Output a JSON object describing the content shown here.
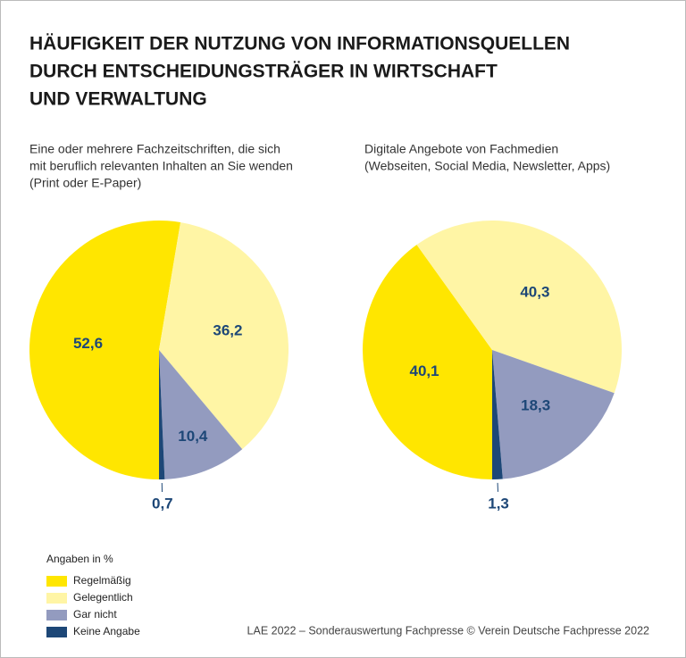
{
  "title": [
    "HÄUFIGKEIT DER NUTZUNG VON INFORMATIONSQUELLEN",
    "DURCH ENTSCHEIDUNGSTRÄGER IN WIRTSCHAFT",
    "UND VERWALTUNG"
  ],
  "legend": {
    "title": "Angaben in %",
    "categories": [
      "Regelmäßig",
      "Gelegentlich",
      "Gar nicht",
      "Keine Angabe"
    ],
    "colors": [
      "#ffe600",
      "#fff5a5",
      "#939bbf",
      "#1d4777"
    ]
  },
  "source": "LAE 2022 – Sonderauswertung Fachpresse © Verein Deutsche Fachpresse 2022",
  "chart_data": [
    {
      "type": "pie",
      "subtitle": [
        "Eine oder mehrere Fachzeitschriften, die sich",
        "mit beruflich relevanten Inhalten an Sie wenden",
        "(Print oder E-Paper)"
      ],
      "values": [
        52.6,
        36.2,
        10.4,
        0.7
      ],
      "value_labels": [
        "52,6",
        "36,2",
        "10,4",
        "0,7"
      ]
    },
    {
      "type": "pie",
      "subtitle": [
        "Digitale Angebote von Fachmedien",
        "(Webseiten, Social Media, Newsletter, Apps)"
      ],
      "values": [
        40.1,
        40.3,
        18.3,
        1.3
      ],
      "value_labels": [
        "40,1",
        "40,3",
        "18,3",
        "1,3"
      ]
    }
  ]
}
